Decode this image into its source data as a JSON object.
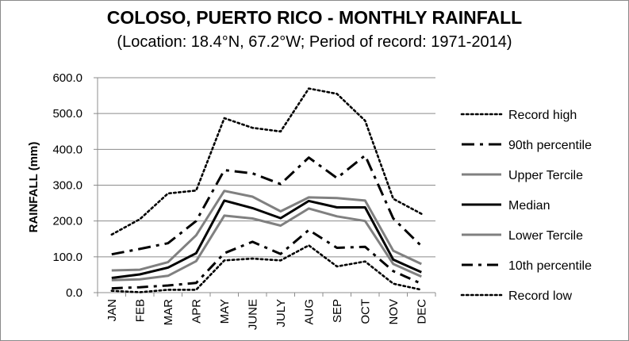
{
  "chart_data": {
    "type": "line",
    "title": "COLOSO, PUERTO RICO - MONTHLY RAINFALL",
    "subtitle": "(Location: 18.4°N, 67.2°W; Period of record: 1971-2014)",
    "xlabel": "",
    "ylabel": "RAINFALL (mm)",
    "ylim": [
      0,
      600
    ],
    "yticks": [
      "0.0",
      "100.0",
      "200.0",
      "300.0",
      "400.0",
      "500.0",
      "600.0"
    ],
    "grid": true,
    "legend_position": "right",
    "categories": [
      "JAN",
      "FEB",
      "MAR",
      "APR",
      "MAY",
      "JUNE",
      "JULY",
      "AUG",
      "SEP",
      "OCT",
      "NOV",
      "DEC"
    ],
    "series": [
      {
        "name": "Record high",
        "style": "dotted",
        "color": "#000000",
        "values": [
          162,
          205,
          277,
          285,
          487,
          460,
          450,
          570,
          555,
          480,
          262,
          220
        ]
      },
      {
        "name": "90th percentile",
        "style": "dashdot",
        "color": "#000000",
        "values": [
          107,
          122,
          138,
          200,
          342,
          333,
          303,
          377,
          320,
          383,
          207,
          130
        ]
      },
      {
        "name": "Upper Tercile",
        "style": "solid",
        "color": "#808080",
        "values": [
          62,
          64,
          85,
          160,
          284,
          268,
          227,
          266,
          264,
          257,
          117,
          80
        ]
      },
      {
        "name": "Median",
        "style": "solid",
        "color": "#000000",
        "values": [
          41,
          51,
          70,
          110,
          257,
          236,
          208,
          256,
          238,
          238,
          92,
          57
        ]
      },
      {
        "name": "Lower Tercile",
        "style": "solid",
        "color": "#808080",
        "values": [
          35,
          37,
          47,
          88,
          215,
          207,
          187,
          235,
          213,
          200,
          80,
          45
        ]
      },
      {
        "name": "10th percentile",
        "style": "longdash",
        "color": "#000000",
        "values": [
          12,
          15,
          20,
          27,
          110,
          142,
          108,
          175,
          125,
          128,
          60,
          25
        ]
      },
      {
        "name": "Record low",
        "style": "dotted",
        "color": "#000000",
        "values": [
          5,
          1,
          8,
          8,
          90,
          95,
          90,
          132,
          73,
          87,
          25,
          8
        ]
      }
    ]
  }
}
